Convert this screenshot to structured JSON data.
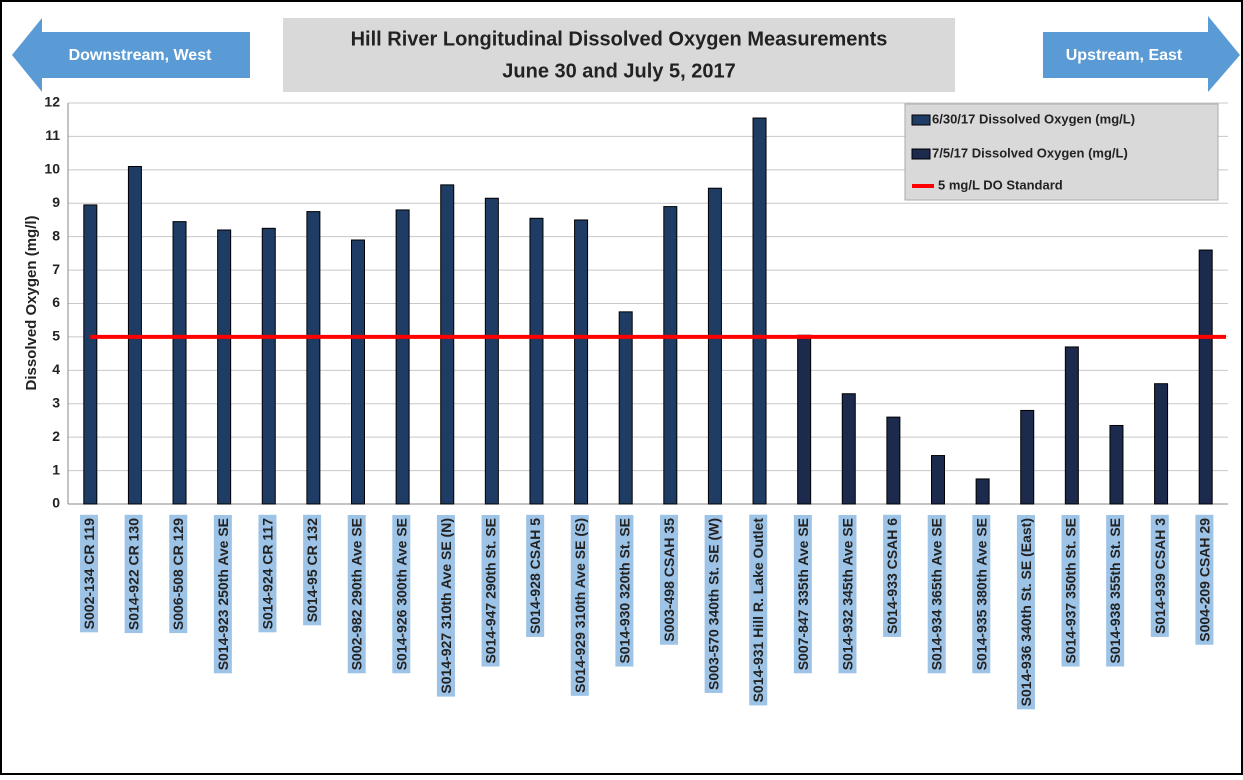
{
  "chart_data": {
    "type": "bar",
    "title": "Hill River Longitudinal Dissolved Oxygen Measurements",
    "subtitle": "June 30 and July 5, 2017",
    "annotations": [
      "Downstream, West",
      "Upstream, East"
    ],
    "y_label": "Dissolved Oxygen (mg/l)",
    "categories": [
      "S002-134 CR 119",
      "S014-922 CR 130",
      "S006-508 CR 129",
      "S014-923 250th Ave SE",
      "S014-924 CR 117",
      "S014-95 CR 132",
      "S002-982 290th Ave SE",
      "S014-926 300th Ave SE",
      "S014-927 310th Ave SE (N)",
      "S014-947 290th St. SE",
      "S014-928 CSAH 5",
      "S014-929 310th Ave SE (S)",
      "S014-930 320th St. SE",
      "S003-498 CSAH 35",
      "S003-570 340th St. SE (W)",
      "S014-931 Hill R. Lake Outlet",
      "S007-847 335th Ave SE",
      "S014-932 345th Ave SE",
      "S014-933 CSAH 6",
      "S014-934 365th Ave SE",
      "S014-935 380th Ave SE",
      "S014-936 340th St. SE (East)",
      "S014-937 350th St. SE",
      "S014-938 355th St. SE",
      "S014-939 CSAH 3",
      "S004-209 CSAH 29"
    ],
    "series": [
      {
        "name": "6/30/17 Dissolved Oxygen (mg/L)",
        "color": "#1f3d64",
        "values": [
          8.95,
          10.1,
          8.45,
          8.2,
          8.25,
          8.75,
          7.9,
          8.8,
          9.55,
          9.15,
          8.55,
          8.5,
          5.75,
          8.9,
          9.45,
          11.55,
          null,
          null,
          null,
          null,
          null,
          null,
          null,
          null,
          null,
          null
        ]
      },
      {
        "name": "7/5/17 Dissolved Oxygen (mg/L)",
        "color": "#1b2a4d",
        "values": [
          null,
          null,
          null,
          null,
          null,
          null,
          null,
          null,
          null,
          null,
          null,
          null,
          null,
          null,
          null,
          null,
          5.05,
          3.3,
          2.6,
          1.45,
          0.75,
          2.8,
          4.7,
          2.35,
          3.6,
          7.6
        ]
      }
    ],
    "standard": {
      "name": "5 mg/L DO Standard",
      "value": 5,
      "color": "#ff0000"
    },
    "ylim": [
      0,
      12
    ],
    "yticks": [
      0,
      1,
      2,
      3,
      4,
      5,
      6,
      7,
      8,
      9,
      10,
      11,
      12
    ],
    "grid": true
  }
}
